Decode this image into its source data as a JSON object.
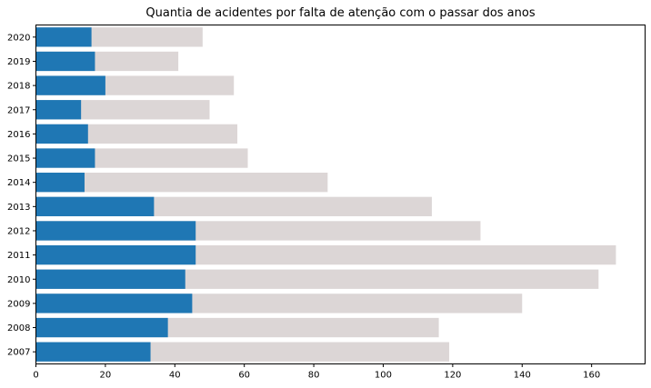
{
  "chart_data": {
    "type": "bar",
    "orientation": "horizontal",
    "stacking": "overlay",
    "title": "Quantia de acidentes por falta de atenção com o passar dos anos",
    "xlabel": "",
    "ylabel": "",
    "categories": [
      "2007",
      "2008",
      "2009",
      "2010",
      "2011",
      "2012",
      "2013",
      "2014",
      "2015",
      "2016",
      "2017",
      "2018",
      "2019",
      "2020"
    ],
    "series": [
      {
        "values": [
          119,
          116,
          140,
          162,
          167,
          128,
          114,
          84,
          61,
          58,
          50,
          57,
          41,
          48
        ],
        "color": "#dcd6d6"
      },
      {
        "values": [
          33,
          38,
          45,
          43,
          46,
          46,
          34,
          14,
          17,
          15,
          13,
          20,
          17,
          16
        ],
        "color": "#1f77b4"
      }
    ],
    "xlim": [
      0,
      175.4
    ],
    "xticks": [
      0,
      20,
      40,
      60,
      80,
      100,
      120,
      140,
      160
    ],
    "grid": false,
    "legend": "none"
  }
}
